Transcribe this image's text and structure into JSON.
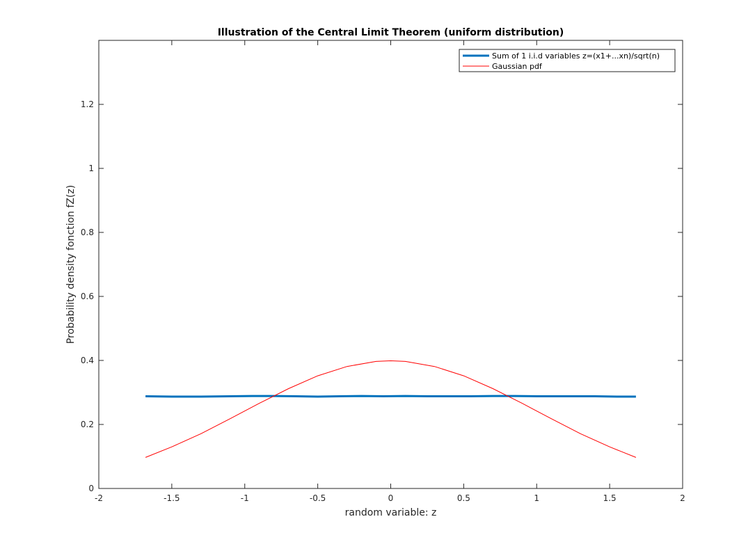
{
  "chart_data": {
    "type": "line",
    "title": "Illustration of the Central Limit Theorem (uniform distribution)",
    "xlabel": "random variable: z",
    "ylabel": "Probability density fonction fZ(z)",
    "xlim": [
      -2,
      2
    ],
    "ylim": [
      0,
      1.4
    ],
    "xticks": [
      "-2",
      "-1.5",
      "-1",
      "-0.5",
      "0",
      "0.5",
      "1",
      "1.5",
      "2"
    ],
    "yticks": [
      "0",
      "0.2",
      "0.4",
      "0.6",
      "0.8",
      "1",
      "1.2"
    ],
    "grid": false,
    "legend_position": "top-right",
    "series": [
      {
        "name": "Sum of 1 i.i.d variables z=(x1+...xn)/sqrt(n)",
        "color": "#0072BD",
        "line_width": "thick",
        "x": [
          -1.68,
          -1.5,
          -1.3,
          -1.1,
          -0.95,
          -0.8,
          -0.65,
          -0.5,
          -0.35,
          -0.2,
          -0.05,
          0.1,
          0.25,
          0.4,
          0.55,
          0.7,
          0.85,
          1.0,
          1.2,
          1.4,
          1.55,
          1.68
        ],
        "values": [
          0.288,
          0.287,
          0.287,
          0.288,
          0.289,
          0.289,
          0.288,
          0.287,
          0.288,
          0.289,
          0.288,
          0.289,
          0.288,
          0.288,
          0.288,
          0.289,
          0.289,
          0.288,
          0.288,
          0.288,
          0.287,
          0.287
        ]
      },
      {
        "name": "Gaussian pdf",
        "color": "#FF0000",
        "line_width": "thin",
        "x": [
          -1.68,
          -1.5,
          -1.3,
          -1.1,
          -0.9,
          -0.7,
          -0.5,
          -0.3,
          -0.1,
          0.0,
          0.1,
          0.3,
          0.5,
          0.7,
          0.9,
          1.1,
          1.3,
          1.5,
          1.68
        ],
        "values": [
          0.097,
          0.13,
          0.171,
          0.218,
          0.266,
          0.312,
          0.352,
          0.381,
          0.397,
          0.399,
          0.397,
          0.381,
          0.352,
          0.312,
          0.266,
          0.218,
          0.171,
          0.13,
          0.097
        ]
      }
    ]
  }
}
